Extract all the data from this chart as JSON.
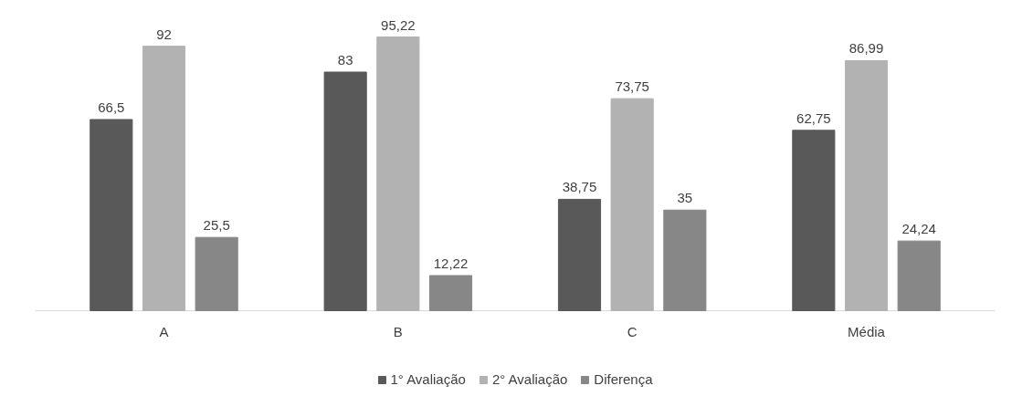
{
  "chart_data": {
    "type": "bar",
    "categories": [
      "A",
      "B",
      "C",
      "Média"
    ],
    "series": [
      {
        "name": "1° Avaliação",
        "color": "#595959",
        "values": [
          66.5,
          83,
          38.75,
          62.75
        ],
        "value_labels": [
          "66,5",
          "83",
          "38,75",
          "62,75"
        ]
      },
      {
        "name": "2° Avaliação",
        "color": "#b2b2b2",
        "values": [
          92,
          95.22,
          73.75,
          86.99
        ],
        "value_labels": [
          "92",
          "95,22",
          "73,75",
          "86,99"
        ]
      },
      {
        "name": "Diferença",
        "color": "#878787",
        "values": [
          25.5,
          12.22,
          35,
          24.24
        ],
        "value_labels": [
          "25,5",
          "12,22",
          "35",
          "24,24"
        ]
      }
    ],
    "legend": "bottom"
  }
}
